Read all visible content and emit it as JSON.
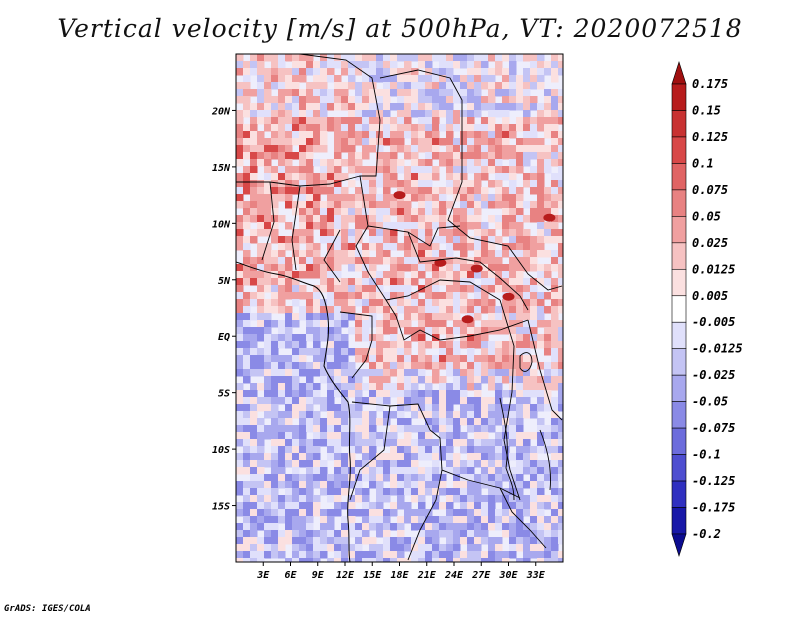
{
  "title": "Vertical velocity [m/s] at 500hPa, VT: 2020072518",
  "footer": "GrADS: IGES/COLA",
  "map": {
    "lon_range": [
      0,
      36
    ],
    "lat_range": [
      -20,
      25
    ],
    "lat_ticks": [
      "20N",
      "15N",
      "10N",
      "5N",
      "EQ",
      "5S",
      "10S",
      "15S"
    ],
    "lat_tick_values": [
      20,
      15,
      10,
      5,
      0,
      -5,
      -10,
      -15
    ],
    "lon_ticks": [
      "3E",
      "6E",
      "9E",
      "12E",
      "15E",
      "18E",
      "21E",
      "24E",
      "27E",
      "30E",
      "33E"
    ],
    "lon_tick_values": [
      3,
      6,
      9,
      12,
      15,
      18,
      21,
      24,
      27,
      30,
      33
    ]
  },
  "colorbar": {
    "levels": [
      "0.175",
      "0.15",
      "0.125",
      "0.1",
      "0.075",
      "0.05",
      "0.025",
      "0.0125",
      "0.005",
      "-0.005",
      "-0.0125",
      "-0.025",
      "-0.05",
      "-0.075",
      "-0.1",
      "-0.125",
      "-0.175",
      "-0.2"
    ],
    "colors": [
      "#a01010",
      "#b71c1c",
      "#c83232",
      "#d84848",
      "#e06464",
      "#e88282",
      "#f0a0a0",
      "#f6c2c2",
      "#fbe0e0",
      "#ffffff",
      "#e0e0fb",
      "#c4c4f4",
      "#a8a8ee",
      "#8a8ae6",
      "#6c6cdc",
      "#4e4ed0",
      "#3030c0",
      "#1818a8",
      "#0c0c90"
    ]
  }
}
